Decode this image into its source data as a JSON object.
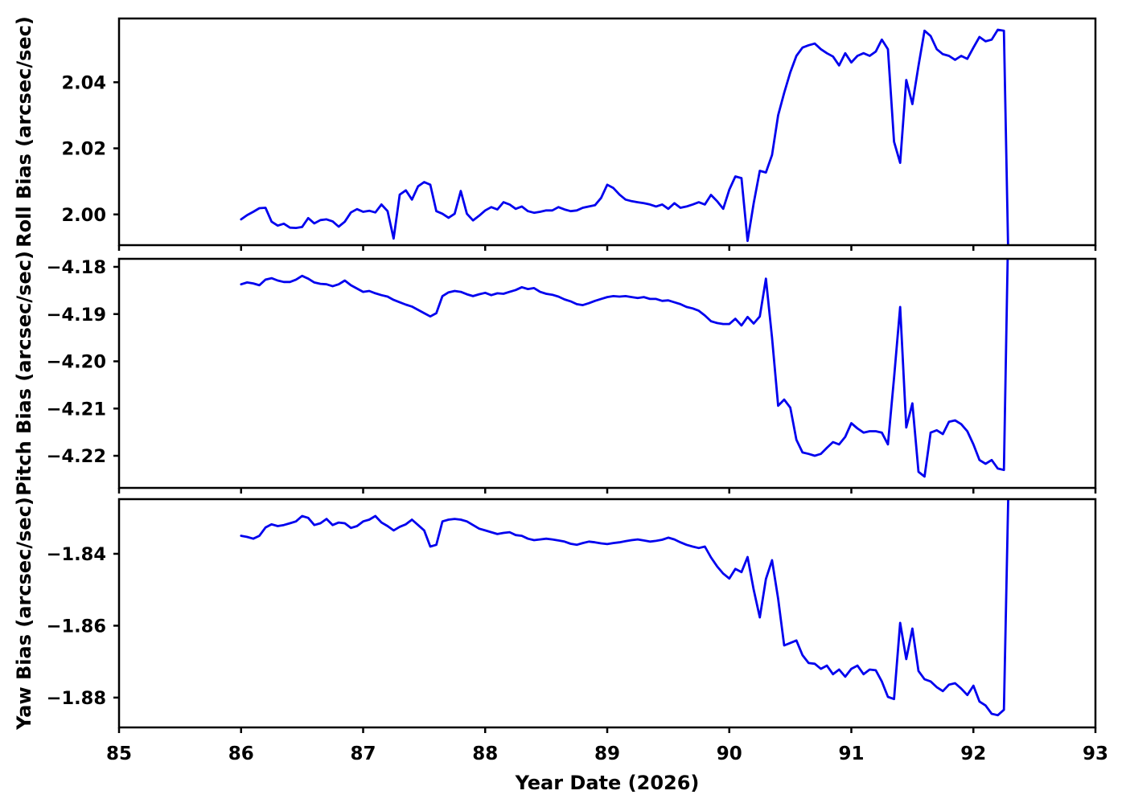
{
  "chart_data": {
    "type": "line",
    "title": "",
    "xlabel": "Year Date (2026)",
    "xlim": [
      85,
      93
    ],
    "x_ticks": [
      85,
      86,
      87,
      88,
      89,
      90,
      91,
      92,
      93
    ],
    "x_tick_labels": [
      "85",
      "86",
      "87",
      "88",
      "89",
      "90",
      "91",
      "92",
      "93"
    ],
    "grid": "off",
    "legend": "none",
    "line_color": "#0000EE",
    "axis_color": "#000000",
    "x": [
      86.0,
      86.05,
      86.1,
      86.15,
      86.2,
      86.25,
      86.3,
      86.35,
      86.4,
      86.45,
      86.5,
      86.55,
      86.6,
      86.65,
      86.7,
      86.75,
      86.8,
      86.85,
      86.9,
      86.95,
      87.0,
      87.05,
      87.1,
      87.15,
      87.2,
      87.25,
      87.3,
      87.35,
      87.4,
      87.45,
      87.5,
      87.55,
      87.6,
      87.65,
      87.7,
      87.75,
      87.8,
      87.85,
      87.9,
      87.95,
      88.0,
      88.05,
      88.1,
      88.15,
      88.2,
      88.25,
      88.3,
      88.35,
      88.4,
      88.45,
      88.5,
      88.55,
      88.6,
      88.65,
      88.7,
      88.75,
      88.8,
      88.85,
      88.9,
      88.95,
      89.0,
      89.05,
      89.1,
      89.15,
      89.2,
      89.25,
      89.3,
      89.35,
      89.4,
      89.45,
      89.5,
      89.55,
      89.6,
      89.65,
      89.7,
      89.75,
      89.8,
      89.85,
      89.9,
      89.95,
      90.0,
      90.05,
      90.1,
      90.15,
      90.2,
      90.25,
      90.3,
      90.35,
      90.4,
      90.45,
      90.5,
      90.55,
      90.6,
      90.65,
      90.7,
      90.75,
      90.8,
      90.85,
      90.9,
      90.95,
      91.0,
      91.05,
      91.1,
      91.15,
      91.2,
      91.25,
      91.3,
      91.35,
      91.4,
      91.45,
      91.5,
      91.55,
      91.6,
      91.65,
      91.7,
      91.75,
      91.8,
      91.85,
      91.9,
      91.95,
      92.0,
      92.05,
      92.1,
      92.15,
      92.2,
      92.25,
      92.3
    ],
    "panels": [
      {
        "ylabel": "Roll Bias (arcsec/sec)",
        "ylim": [
          1.9907,
          2.0593
        ],
        "yticks": [
          2.0,
          2.02,
          2.04
        ],
        "ytick_labels": [
          "2.00",
          "2.02",
          "2.04"
        ],
        "values": [
          1.9985,
          1.9998,
          2.0008,
          2.0019,
          2.002,
          1.9978,
          1.9966,
          1.9972,
          1.996,
          1.9959,
          1.9962,
          1.9989,
          1.9973,
          1.9983,
          1.9985,
          1.9979,
          1.9963,
          1.9978,
          2.0006,
          2.0016,
          2.0008,
          2.0011,
          2.0006,
          2.003,
          2.001,
          1.9927,
          2.006,
          2.0073,
          2.0045,
          2.0085,
          2.0098,
          2.009,
          2.001,
          2.0002,
          1.999,
          2.0002,
          2.0071,
          2.0002,
          1.9982,
          1.9996,
          2.0012,
          2.0022,
          2.0015,
          2.0037,
          2.003,
          2.0017,
          2.0024,
          2.001,
          2.0005,
          2.0008,
          2.0012,
          2.0012,
          2.0022,
          2.0015,
          2.001,
          2.0012,
          2.002,
          2.0024,
          2.0028,
          2.005,
          2.009,
          2.008,
          2.006,
          2.0045,
          2.004,
          2.0037,
          2.0034,
          2.003,
          2.0024,
          2.003,
          2.0017,
          2.0034,
          2.002,
          2.0024,
          2.003,
          2.0037,
          2.003,
          2.0059,
          2.004,
          2.0017,
          2.0075,
          2.0115,
          2.011,
          1.992,
          2.0034,
          2.0132,
          2.0127,
          2.018,
          2.03,
          2.0368,
          2.043,
          2.048,
          2.0505,
          2.0512,
          2.0517,
          2.05,
          2.0488,
          2.0478,
          2.0451,
          2.0488,
          2.046,
          2.048,
          2.0488,
          2.048,
          2.0493,
          2.0529,
          2.05,
          2.022,
          2.0156,
          2.0407,
          2.0334,
          2.045,
          2.0556,
          2.054,
          2.05,
          2.0485,
          2.048,
          2.0468,
          2.048,
          2.0471,
          2.0505,
          2.0537,
          2.0524,
          2.0529,
          2.0559,
          2.0556,
          1.96
        ]
      },
      {
        "ylabel": "Pitch Bias (arcsec/sec)",
        "ylim": [
          -4.2268,
          -4.1783
        ],
        "yticks": [
          -4.18,
          -4.19,
          -4.2,
          -4.21,
          -4.22
        ],
        "ytick_labels": [
          "−4.18",
          "−4.19",
          "−4.20",
          "−4.21",
          "−4.22"
        ],
        "values": [
          -4.1837,
          -4.1833,
          -4.1835,
          -4.1839,
          -4.1827,
          -4.1824,
          -4.1829,
          -4.1832,
          -4.1832,
          -4.1827,
          -4.1819,
          -4.1825,
          -4.1833,
          -4.1836,
          -4.1837,
          -4.1841,
          -4.1837,
          -4.1829,
          -4.1839,
          -4.1846,
          -4.1853,
          -4.1851,
          -4.1856,
          -4.186,
          -4.1863,
          -4.187,
          -4.1875,
          -4.188,
          -4.1884,
          -4.1891,
          -4.1898,
          -4.1905,
          -4.1898,
          -4.1862,
          -4.1854,
          -4.1851,
          -4.1853,
          -4.1858,
          -4.1862,
          -4.1858,
          -4.1855,
          -4.186,
          -4.1856,
          -4.1857,
          -4.1853,
          -4.1849,
          -4.1843,
          -4.1847,
          -4.1845,
          -4.1853,
          -4.1857,
          -4.1859,
          -4.1863,
          -4.1869,
          -4.1873,
          -4.1879,
          -4.1881,
          -4.1877,
          -4.1872,
          -4.1868,
          -4.1864,
          -4.1862,
          -4.1863,
          -4.1862,
          -4.1864,
          -4.1866,
          -4.1864,
          -4.1868,
          -4.1868,
          -4.1872,
          -4.1871,
          -4.1875,
          -4.1879,
          -4.1885,
          -4.1888,
          -4.1893,
          -4.1903,
          -4.1915,
          -4.1919,
          -4.1921,
          -4.1921,
          -4.191,
          -4.1924,
          -4.1906,
          -4.192,
          -4.1905,
          -4.1825,
          -4.195,
          -4.2094,
          -4.2081,
          -4.2098,
          -4.2166,
          -4.2193,
          -4.2196,
          -4.22,
          -4.2196,
          -4.2183,
          -4.2171,
          -4.2176,
          -4.216,
          -4.2131,
          -4.2142,
          -4.2151,
          -4.2148,
          -4.2148,
          -4.2151,
          -4.2176,
          -4.2035,
          -4.1885,
          -4.214,
          -4.2089,
          -4.2234,
          -4.2244,
          -4.2151,
          -4.2146,
          -4.2154,
          -4.2128,
          -4.2125,
          -4.2133,
          -4.2148,
          -4.2176,
          -4.2209,
          -4.2217,
          -4.2209,
          -4.2227,
          -4.223,
          -4.15
        ]
      },
      {
        "ylabel": "Yaw Bias (arcsec/sec)",
        "ylim": [
          -1.8883,
          -1.8248
        ],
        "yticks": [
          -1.84,
          -1.86,
          -1.88
        ],
        "ytick_labels": [
          "−1.84",
          "−1.86",
          "−1.88"
        ],
        "values": [
          -1.835,
          -1.8353,
          -1.8358,
          -1.835,
          -1.8327,
          -1.8318,
          -1.8323,
          -1.832,
          -1.8315,
          -1.831,
          -1.8295,
          -1.83,
          -1.832,
          -1.8315,
          -1.8303,
          -1.832,
          -1.8313,
          -1.8315,
          -1.8328,
          -1.8323,
          -1.831,
          -1.8305,
          -1.8295,
          -1.8313,
          -1.8323,
          -1.8335,
          -1.8325,
          -1.8318,
          -1.8305,
          -1.832,
          -1.8335,
          -1.838,
          -1.8375,
          -1.831,
          -1.8305,
          -1.8303,
          -1.8305,
          -1.831,
          -1.832,
          -1.833,
          -1.8335,
          -1.834,
          -1.8345,
          -1.8342,
          -1.834,
          -1.8348,
          -1.835,
          -1.8358,
          -1.8362,
          -1.836,
          -1.8358,
          -1.836,
          -1.8363,
          -1.8366,
          -1.8372,
          -1.8375,
          -1.837,
          -1.8366,
          -1.8368,
          -1.8371,
          -1.8373,
          -1.837,
          -1.8368,
          -1.8365,
          -1.8362,
          -1.836,
          -1.8363,
          -1.8366,
          -1.8364,
          -1.8361,
          -1.8355,
          -1.836,
          -1.8368,
          -1.8375,
          -1.838,
          -1.8384,
          -1.838,
          -1.841,
          -1.8435,
          -1.8455,
          -1.8469,
          -1.8442,
          -1.8451,
          -1.8409,
          -1.85,
          -1.8577,
          -1.847,
          -1.8418,
          -1.8525,
          -1.8655,
          -1.8648,
          -1.8641,
          -1.8682,
          -1.8704,
          -1.8706,
          -1.872,
          -1.8711,
          -1.8735,
          -1.8722,
          -1.8742,
          -1.872,
          -1.8711,
          -1.8735,
          -1.8722,
          -1.8724,
          -1.8755,
          -1.8798,
          -1.8804,
          -1.8592,
          -1.8693,
          -1.8608,
          -1.8726,
          -1.8749,
          -1.8755,
          -1.8771,
          -1.8782,
          -1.8764,
          -1.876,
          -1.8775,
          -1.8793,
          -1.8767,
          -1.8811,
          -1.8822,
          -1.8845,
          -1.8849,
          -1.8834,
          -1.8
        ]
      }
    ]
  }
}
